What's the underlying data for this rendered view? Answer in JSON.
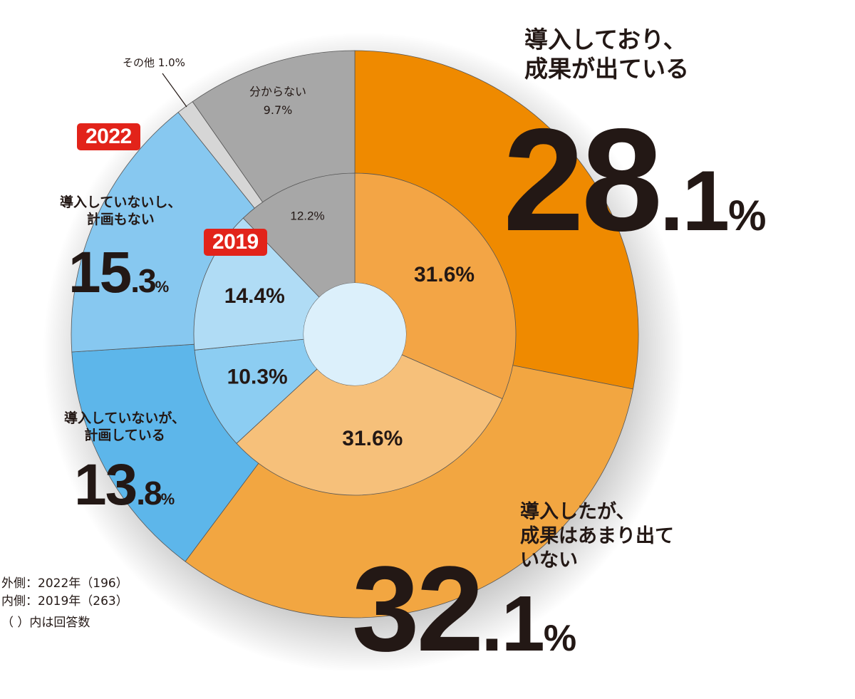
{
  "chart_data": [
    {
      "type": "pie",
      "ring": "outer",
      "badge": "2022",
      "slices": [
        {
          "key": "success",
          "value": 28.1,
          "color": "#ef8a00"
        },
        {
          "key": "no_result",
          "value": 32.1,
          "color": "#f2a641"
        },
        {
          "key": "planning",
          "value": 13.8,
          "color": "#5db6ea"
        },
        {
          "key": "no_plan",
          "value": 15.3,
          "color": "#87c8f0"
        },
        {
          "key": "other",
          "value": 1.0,
          "color": "#d6d6d6"
        },
        {
          "key": "unknown",
          "value": 9.7,
          "color": "#a7a7a7"
        }
      ]
    },
    {
      "type": "pie",
      "ring": "inner",
      "badge": "2019",
      "slices": [
        {
          "key": "success",
          "value": 31.6,
          "label": "31.6%",
          "color": "#f3a545"
        },
        {
          "key": "no_result",
          "value": 31.6,
          "label": "31.6%",
          "color": "#f6c07a"
        },
        {
          "key": "planning",
          "value": 10.3,
          "label": "10.3%",
          "color": "#8ccdf2"
        },
        {
          "key": "no_plan",
          "value": 14.4,
          "label": "14.4%",
          "color": "#b0dcf5"
        },
        {
          "key": "unknown",
          "value": 12.2,
          "label": "12.2%",
          "color": "#a7a7a7"
        }
      ]
    }
  ],
  "labels": {
    "success": {
      "text": "導入しており、\n成果が出ている",
      "int": "28",
      "dec": ".1",
      "pct": "%"
    },
    "no_result": {
      "text": "導入したが、\n成果はあまり出て\nいない",
      "int": "32",
      "dec": ".1",
      "pct": "%"
    },
    "planning": {
      "text": "導入していないが、\n計画している",
      "int": "13",
      "dec": ".8",
      "pct": "%"
    },
    "no_plan": {
      "text": "導入していないし、\n計画もない",
      "int": "15",
      "dec": ".3",
      "pct": "%"
    },
    "other": "その他 1.0%",
    "unknown": "分からない\n9.7%"
  },
  "notes": {
    "outer": "外側：2022年（196）",
    "inner": "内側：2019年（263）",
    "paren": "（ ）内は回答数"
  }
}
